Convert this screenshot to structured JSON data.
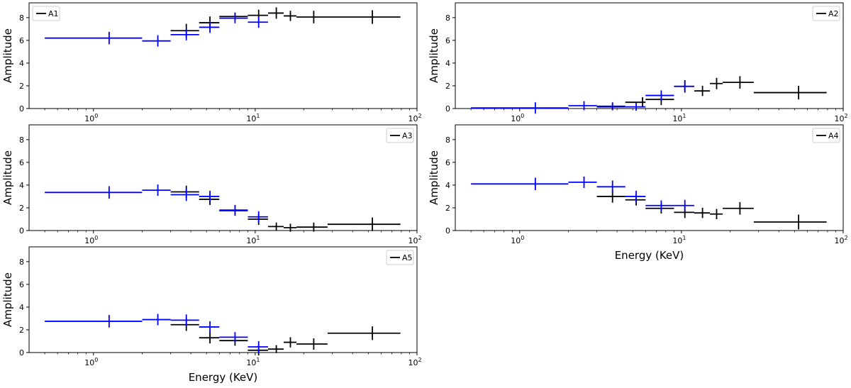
{
  "chart_data": [
    {
      "type": "scatter",
      "legend": "A1",
      "legend_position": "top-left",
      "ylabel": "Amplitude",
      "xlabel": "",
      "xscale": "log",
      "xlim": [
        0.4,
        100
      ],
      "ylim": [
        0,
        9.3
      ],
      "grid": false,
      "yticks": [
        0,
        2,
        4,
        6,
        8
      ],
      "xticks": [
        {
          "value": 1,
          "base": "10",
          "exp": "0"
        },
        {
          "value": 10,
          "base": "10",
          "exp": "1"
        },
        {
          "value": 100,
          "base": "10",
          "exp": "2"
        }
      ],
      "series": [
        {
          "name": "A1",
          "color": "#000000",
          "points": [
            {
              "x": 3.75,
              "xlo": 3.0,
              "xhi": 4.5,
              "y": 6.85,
              "err": 0.6
            },
            {
              "x": 5.25,
              "xlo": 4.5,
              "xhi": 6.0,
              "y": 7.55,
              "err": 0.55
            },
            {
              "x": 7.5,
              "xlo": 6.0,
              "xhi": 9.0,
              "y": 8.1,
              "err": 0.35
            },
            {
              "x": 10.5,
              "xlo": 9.0,
              "xhi": 12.0,
              "y": 8.2,
              "err": 0.5
            },
            {
              "x": 13.5,
              "xlo": 12.0,
              "xhi": 15.0,
              "y": 8.4,
              "err": 0.5
            },
            {
              "x": 16.5,
              "xlo": 15.0,
              "xhi": 18.0,
              "y": 8.15,
              "err": 0.45
            },
            {
              "x": 23.0,
              "xlo": 18.0,
              "xhi": 28.0,
              "y": 8.05,
              "err": 0.55
            },
            {
              "x": 53.0,
              "xlo": 28.0,
              "xhi": 79.0,
              "y": 8.05,
              "err": 0.6
            }
          ]
        },
        {
          "name": "",
          "color": "#0000ff",
          "points": [
            {
              "x": 1.25,
              "xlo": 0.5,
              "xhi": 2.0,
              "y": 6.2,
              "err": 0.55
            },
            {
              "x": 2.5,
              "xlo": 2.0,
              "xhi": 3.0,
              "y": 5.95,
              "err": 0.5
            },
            {
              "x": 3.75,
              "xlo": 3.0,
              "xhi": 4.5,
              "y": 6.5,
              "err": 0.5
            },
            {
              "x": 5.25,
              "xlo": 4.5,
              "xhi": 6.0,
              "y": 7.15,
              "err": 0.5
            },
            {
              "x": 7.5,
              "xlo": 6.0,
              "xhi": 9.0,
              "y": 7.95,
              "err": 0.45
            },
            {
              "x": 10.5,
              "xlo": 9.0,
              "xhi": 12.0,
              "y": 7.6,
              "err": 0.5
            }
          ]
        }
      ]
    },
    {
      "type": "scatter",
      "legend": "A2",
      "legend_position": "top-right",
      "ylabel": "Amplitude",
      "xlabel": "",
      "xscale": "log",
      "xlim": [
        0.4,
        100
      ],
      "ylim": [
        0,
        9.3
      ],
      "grid": false,
      "yticks": [
        0,
        2,
        4,
        6,
        8
      ],
      "xticks": [
        {
          "value": 1,
          "base": "10",
          "exp": "0"
        },
        {
          "value": 10,
          "base": "10",
          "exp": "1"
        },
        {
          "value": 100,
          "base": "10",
          "exp": "2"
        }
      ],
      "series": [
        {
          "name": "A2",
          "color": "#000000",
          "points": [
            {
              "x": 3.75,
              "xlo": 3.0,
              "xhi": 4.5,
              "y": 0.15,
              "err": 0.3
            },
            {
              "x": 5.75,
              "xlo": 4.5,
              "xhi": 6.0,
              "y": 0.55,
              "err": 0.45
            },
            {
              "x": 7.5,
              "xlo": 6.0,
              "xhi": 9.0,
              "y": 0.8,
              "err": 0.5
            },
            {
              "x": 10.5,
              "xlo": 9.0,
              "xhi": 12.0,
              "y": 1.95,
              "err": 0.55
            },
            {
              "x": 13.5,
              "xlo": 12.0,
              "xhi": 15.0,
              "y": 1.55,
              "err": 0.45
            },
            {
              "x": 16.5,
              "xlo": 15.0,
              "xhi": 18.0,
              "y": 2.2,
              "err": 0.5
            },
            {
              "x": 23.0,
              "xlo": 18.0,
              "xhi": 28.0,
              "y": 2.3,
              "err": 0.55
            },
            {
              "x": 53.0,
              "xlo": 28.0,
              "xhi": 79.0,
              "y": 1.4,
              "err": 0.6
            }
          ]
        },
        {
          "name": "",
          "color": "#0000ff",
          "points": [
            {
              "x": 1.25,
              "xlo": 0.5,
              "xhi": 2.0,
              "y": 0.05,
              "err": 0.5
            },
            {
              "x": 2.5,
              "xlo": 2.0,
              "xhi": 3.0,
              "y": 0.25,
              "err": 0.4
            },
            {
              "x": 3.75,
              "xlo": 3.0,
              "xhi": 4.5,
              "y": 0.2,
              "err": 0.35
            },
            {
              "x": 5.25,
              "xlo": 4.5,
              "xhi": 6.0,
              "y": 0.15,
              "err": 0.35
            },
            {
              "x": 7.5,
              "xlo": 6.0,
              "xhi": 9.0,
              "y": 1.15,
              "err": 0.45
            },
            {
              "x": 10.5,
              "xlo": 9.0,
              "xhi": 12.0,
              "y": 1.95,
              "err": 0.45
            }
          ]
        }
      ]
    },
    {
      "type": "scatter",
      "legend": "A3",
      "legend_position": "top-right",
      "ylabel": "Amplitude",
      "xlabel": "",
      "xscale": "log",
      "xlim": [
        0.4,
        100
      ],
      "ylim": [
        0,
        9.3
      ],
      "grid": false,
      "yticks": [
        0,
        2,
        4,
        6,
        8
      ],
      "xticks": [
        {
          "value": 1,
          "base": "10",
          "exp": "0"
        },
        {
          "value": 10,
          "base": "10",
          "exp": "1"
        },
        {
          "value": 100,
          "base": "10",
          "exp": "2"
        }
      ],
      "series": [
        {
          "name": "A3",
          "color": "#000000",
          "points": [
            {
              "x": 3.75,
              "xlo": 3.0,
              "xhi": 4.5,
              "y": 3.4,
              "err": 0.55
            },
            {
              "x": 5.25,
              "xlo": 4.5,
              "xhi": 6.0,
              "y": 2.75,
              "err": 0.5
            },
            {
              "x": 7.5,
              "xlo": 6.0,
              "xhi": 9.0,
              "y": 1.75,
              "err": 0.45
            },
            {
              "x": 10.5,
              "xlo": 9.0,
              "xhi": 12.0,
              "y": 1.0,
              "err": 0.5
            },
            {
              "x": 13.5,
              "xlo": 12.0,
              "xhi": 15.0,
              "y": 0.35,
              "err": 0.35
            },
            {
              "x": 16.5,
              "xlo": 15.0,
              "xhi": 18.0,
              "y": 0.25,
              "err": 0.35
            },
            {
              "x": 23.0,
              "xlo": 18.0,
              "xhi": 28.0,
              "y": 0.3,
              "err": 0.4
            },
            {
              "x": 53.0,
              "xlo": 28.0,
              "xhi": 79.0,
              "y": 0.55,
              "err": 0.6
            }
          ]
        },
        {
          "name": "",
          "color": "#0000ff",
          "points": [
            {
              "x": 1.25,
              "xlo": 0.5,
              "xhi": 2.0,
              "y": 3.35,
              "err": 0.55
            },
            {
              "x": 2.5,
              "xlo": 2.0,
              "xhi": 3.0,
              "y": 3.55,
              "err": 0.5
            },
            {
              "x": 3.75,
              "xlo": 3.0,
              "xhi": 4.5,
              "y": 3.15,
              "err": 0.55
            },
            {
              "x": 5.25,
              "xlo": 4.5,
              "xhi": 6.0,
              "y": 3.0,
              "err": 0.5
            },
            {
              "x": 7.5,
              "xlo": 6.0,
              "xhi": 9.0,
              "y": 1.8,
              "err": 0.45
            },
            {
              "x": 10.5,
              "xlo": 9.0,
              "xhi": 12.0,
              "y": 1.2,
              "err": 0.5
            }
          ]
        }
      ]
    },
    {
      "type": "scatter",
      "legend": "A4",
      "legend_position": "top-right",
      "ylabel": "Amplitude",
      "xlabel": "Energy (KeV)",
      "xscale": "log",
      "xlim": [
        0.4,
        100
      ],
      "ylim": [
        0,
        9.3
      ],
      "grid": false,
      "yticks": [
        0,
        2,
        4,
        6,
        8
      ],
      "xticks": [
        {
          "value": 1,
          "base": "10",
          "exp": "0"
        },
        {
          "value": 10,
          "base": "10",
          "exp": "1"
        },
        {
          "value": 100,
          "base": "10",
          "exp": "2"
        }
      ],
      "series": [
        {
          "name": "A4",
          "color": "#000000",
          "points": [
            {
              "x": 3.75,
              "xlo": 3.0,
              "xhi": 4.5,
              "y": 3.0,
              "err": 0.55
            },
            {
              "x": 5.25,
              "xlo": 4.5,
              "xhi": 6.0,
              "y": 2.7,
              "err": 0.5
            },
            {
              "x": 7.5,
              "xlo": 6.0,
              "xhi": 9.0,
              "y": 1.95,
              "err": 0.45
            },
            {
              "x": 10.5,
              "xlo": 9.0,
              "xhi": 12.0,
              "y": 1.6,
              "err": 0.5
            },
            {
              "x": 13.5,
              "xlo": 12.0,
              "xhi": 15.0,
              "y": 1.55,
              "err": 0.45
            },
            {
              "x": 16.5,
              "xlo": 15.0,
              "xhi": 18.0,
              "y": 1.45,
              "err": 0.45
            },
            {
              "x": 23.0,
              "xlo": 18.0,
              "xhi": 28.0,
              "y": 1.95,
              "err": 0.55
            },
            {
              "x": 53.0,
              "xlo": 28.0,
              "xhi": 79.0,
              "y": 0.75,
              "err": 0.65
            }
          ]
        },
        {
          "name": "",
          "color": "#0000ff",
          "points": [
            {
              "x": 1.25,
              "xlo": 0.5,
              "xhi": 2.0,
              "y": 4.1,
              "err": 0.55
            },
            {
              "x": 2.5,
              "xlo": 2.0,
              "xhi": 3.0,
              "y": 4.25,
              "err": 0.5
            },
            {
              "x": 3.75,
              "xlo": 3.0,
              "xhi": 4.5,
              "y": 3.85,
              "err": 0.55
            },
            {
              "x": 5.25,
              "xlo": 4.5,
              "xhi": 6.0,
              "y": 3.0,
              "err": 0.5
            },
            {
              "x": 7.5,
              "xlo": 6.0,
              "xhi": 9.0,
              "y": 2.2,
              "err": 0.45
            },
            {
              "x": 10.5,
              "xlo": 9.0,
              "xhi": 12.0,
              "y": 2.2,
              "err": 0.5
            }
          ]
        }
      ]
    },
    {
      "type": "scatter",
      "legend": "A5",
      "legend_position": "top-right",
      "ylabel": "Amplitude",
      "xlabel": "Energy (KeV)",
      "xscale": "log",
      "xlim": [
        0.4,
        100
      ],
      "ylim": [
        0,
        9.3
      ],
      "grid": false,
      "yticks": [
        0,
        2,
        4,
        6,
        8
      ],
      "xticks": [
        {
          "value": 1,
          "base": "10",
          "exp": "0"
        },
        {
          "value": 10,
          "base": "10",
          "exp": "1"
        },
        {
          "value": 100,
          "base": "10",
          "exp": "2"
        }
      ],
      "series": [
        {
          "name": "A5",
          "color": "#000000",
          "points": [
            {
              "x": 3.75,
              "xlo": 3.0,
              "xhi": 4.5,
              "y": 2.45,
              "err": 0.55
            },
            {
              "x": 5.25,
              "xlo": 4.5,
              "xhi": 6.0,
              "y": 1.3,
              "err": 0.5
            },
            {
              "x": 7.5,
              "xlo": 6.0,
              "xhi": 9.0,
              "y": 1.05,
              "err": 0.45
            },
            {
              "x": 10.5,
              "xlo": 9.0,
              "xhi": 12.0,
              "y": 0.2,
              "err": 0.45
            },
            {
              "x": 13.5,
              "xlo": 12.0,
              "xhi": 15.0,
              "y": 0.3,
              "err": 0.35
            },
            {
              "x": 16.5,
              "xlo": 15.0,
              "xhi": 18.0,
              "y": 0.9,
              "err": 0.45
            },
            {
              "x": 23.0,
              "xlo": 18.0,
              "xhi": 28.0,
              "y": 0.75,
              "err": 0.5
            },
            {
              "x": 53.0,
              "xlo": 28.0,
              "xhi": 79.0,
              "y": 1.7,
              "err": 0.6
            }
          ]
        },
        {
          "name": "",
          "color": "#0000ff",
          "points": [
            {
              "x": 1.25,
              "xlo": 0.5,
              "xhi": 2.0,
              "y": 2.75,
              "err": 0.55
            },
            {
              "x": 2.5,
              "xlo": 2.0,
              "xhi": 3.0,
              "y": 2.9,
              "err": 0.5
            },
            {
              "x": 3.75,
              "xlo": 3.0,
              "xhi": 4.5,
              "y": 2.85,
              "err": 0.5
            },
            {
              "x": 5.25,
              "xlo": 4.5,
              "xhi": 6.0,
              "y": 2.25,
              "err": 0.5
            },
            {
              "x": 7.5,
              "xlo": 6.0,
              "xhi": 9.0,
              "y": 1.35,
              "err": 0.45
            },
            {
              "x": 10.5,
              "xlo": 9.0,
              "xhi": 12.0,
              "y": 0.5,
              "err": 0.5
            }
          ]
        }
      ]
    }
  ]
}
